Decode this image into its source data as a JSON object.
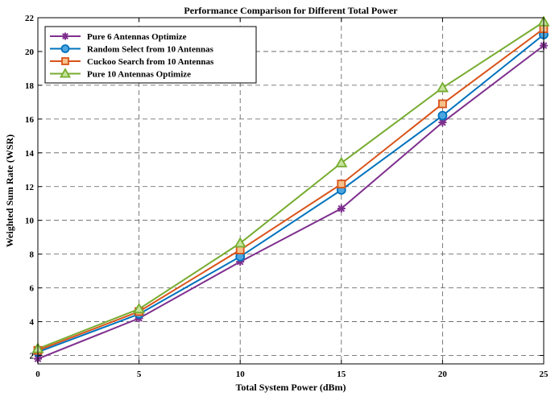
{
  "chart_data": {
    "type": "line",
    "title": "Performance Comparison for Different Total Power",
    "xlabel": "Total System Power (dBm)",
    "ylabel": "Weighted Sum Rate (WSR)",
    "x": [
      0,
      5,
      10,
      15,
      20,
      25
    ],
    "xlim": [
      0,
      25
    ],
    "ylim": [
      1.5,
      22
    ],
    "xticks": [
      0,
      5,
      10,
      15,
      20,
      25
    ],
    "yticks": [
      2,
      4,
      6,
      8,
      10,
      12,
      14,
      16,
      18,
      20,
      22
    ],
    "grid": true,
    "legend_position": "top-left",
    "series": [
      {
        "name": "Pure 6 Antennas Optimize",
        "values": [
          1.8,
          4.2,
          7.55,
          10.7,
          15.8,
          20.35
        ],
        "color": "#7e2f8e",
        "marker": "asterisk"
      },
      {
        "name": "Random Select from 10 Antennas",
        "values": [
          2.2,
          4.45,
          7.85,
          11.8,
          16.2,
          21.0
        ],
        "color": "#0072bd",
        "marker": "circle"
      },
      {
        "name": "Cuckoo Search from 10 Antennas",
        "values": [
          2.3,
          4.6,
          8.25,
          12.15,
          16.9,
          21.35
        ],
        "color": "#d95319",
        "marker": "square"
      },
      {
        "name": "Pure 10 Antennas Optimize",
        "values": [
          2.4,
          4.75,
          8.65,
          13.4,
          17.85,
          21.75
        ],
        "color": "#77ac30",
        "marker": "triangle"
      }
    ]
  }
}
